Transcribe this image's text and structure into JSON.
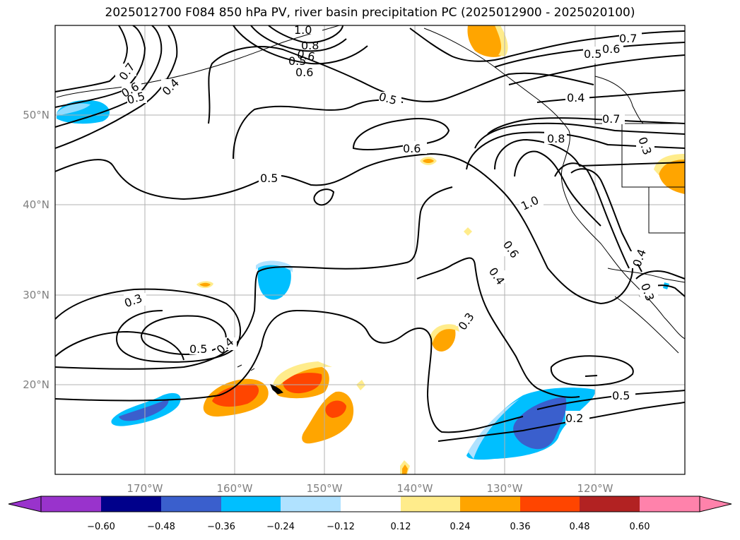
{
  "title": "2025012700 F084 850 hPa PV, river basin precipitation PC (2025012900 - 2025020100)",
  "x_ticks": [
    "170°W",
    "160°W",
    "150°W",
    "140°W",
    "130°W",
    "120°W"
  ],
  "y_ticks": [
    "50°N",
    "40°N",
    "30°N",
    "20°N"
  ],
  "colorbar": {
    "labels": [
      "−0.60",
      "−0.48",
      "−0.36",
      "−0.24",
      "−0.12",
      "0.12",
      "0.24",
      "0.36",
      "0.48",
      "0.60"
    ],
    "colors": [
      "#9933cc",
      "#00008b",
      "#3a5fcd",
      "#00bfff",
      "#b0e2ff",
      "#ffffff",
      "#ffec8b",
      "#ffa500",
      "#ff4500",
      "#b22222",
      "#ff82ab"
    ]
  },
  "contour_labels": [
    "0.7",
    "0.6",
    "0.5",
    "0.4",
    "0.3",
    "0.2",
    "1.0",
    "0.8",
    "0.6",
    "0.5",
    "0.6",
    "0.5",
    "0.7",
    "0.6",
    "0.5",
    "0.4",
    "0.7",
    "0.6",
    "0.3",
    "0.5",
    "0.4",
    "0.3",
    "0.6",
    "0.4",
    "0.5",
    "0.2",
    "0.4",
    "0.3",
    "1.0",
    "0.8",
    "0.5"
  ],
  "chart_data": {
    "type": "map",
    "field": "850 hPa PV contours with river basin precipitation PC shading",
    "lon_range": [
      -180,
      -110
    ],
    "lat_range": [
      10,
      60
    ],
    "contour_levels": [
      0.2,
      0.3,
      0.4,
      0.5,
      0.6,
      0.7,
      0.8,
      1.0,
      1.2
    ],
    "shading_levels": [
      -0.6,
      -0.48,
      -0.36,
      -0.24,
      -0.12,
      0.12,
      0.24,
      0.36,
      0.48,
      0.6
    ],
    "grid": true
  }
}
